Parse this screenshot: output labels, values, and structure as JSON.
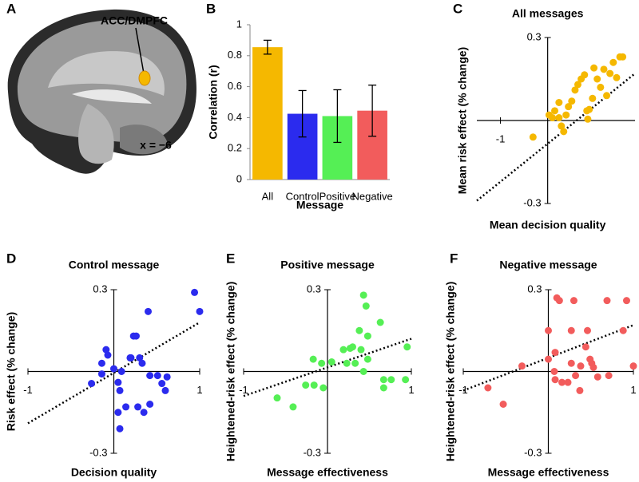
{
  "panel_a": {
    "panel_label": "A",
    "region_label": "ACC/DMPFC",
    "coordinate_label": "x = −6"
  },
  "chart_data": [
    {
      "type": "bar",
      "panel_label": "B",
      "ylabel": "Correlation (r)",
      "xlabel": "Message",
      "categories": [
        "All",
        "Control",
        "Positive",
        "Negative"
      ],
      "values": [
        0.855,
        0.425,
        0.41,
        0.445
      ],
      "errors": [
        0.045,
        0.15,
        0.17,
        0.165
      ],
      "colors": [
        "#f5b800",
        "#2b2bee",
        "#55ef55",
        "#f25c5c"
      ],
      "ylim": [
        0,
        1
      ],
      "yticks": [
        0,
        0.2,
        0.4,
        0.6,
        0.8,
        1
      ]
    },
    {
      "type": "scatter",
      "panel_label": "C",
      "title": "All messages",
      "xlabel": "Mean decision quality",
      "ylabel": "Mean risk effect (% change)",
      "color": "#f5b800",
      "xlim": [
        -1.5,
        1.85
      ],
      "ylim": [
        -0.3,
        0.3
      ],
      "xticks": [
        -1
      ],
      "yticks": [
        -0.3,
        0.3
      ],
      "x": [
        -0.31,
        0.03,
        0.1,
        0.15,
        0.24,
        0.29,
        0.34,
        0.39,
        0.44,
        0.51,
        0.58,
        0.64,
        0.71,
        0.78,
        0.85,
        0.88,
        0.95,
        0.98,
        1.05,
        1.12,
        1.19,
        1.25,
        1.32,
        1.39,
        1.46,
        1.53,
        1.59,
        0.83,
        0.24
      ],
      "y": [
        -0.06,
        0.02,
        0.01,
        0.035,
        0.01,
        -0.02,
        -0.04,
        0.02,
        0.05,
        0.07,
        0.11,
        0.13,
        0.15,
        0.165,
        0.005,
        0.04,
        0.08,
        0.19,
        0.15,
        0.12,
        0.185,
        0.09,
        0.17,
        0.21,
        0.155,
        0.23,
        0.23,
        0.035,
        0.065
      ],
      "trendline": {
        "x": [
          -1.5,
          1.85
        ],
        "y": [
          -0.29,
          0.17
        ]
      }
    },
    {
      "type": "scatter",
      "panel_label": "D",
      "title": "Control message",
      "xlabel": "Decision quality",
      "ylabel": "Risk effect (% change)",
      "color": "#2b2bee",
      "xlim": [
        -1,
        1
      ],
      "ylim": [
        -0.3,
        0.3
      ],
      "xticks": [
        -1,
        1
      ],
      "yticks": [
        -0.3,
        0.3
      ],
      "x": [
        -0.26,
        -0.14,
        -0.14,
        -0.09,
        -0.07,
        0,
        0.05,
        0.07,
        0.09,
        0.05,
        0.07,
        0.14,
        0.19,
        0.2,
        0.23,
        0.26,
        0.28,
        0.3,
        0.33,
        0.35,
        0.4,
        0.42,
        0.42,
        0.51,
        0.56,
        0.62,
        0.6,
        0.94,
        1.0
      ],
      "y": [
        -0.044,
        -0.009,
        0.03,
        0.08,
        0.06,
        0.01,
        -0.04,
        -0.07,
        0,
        -0.15,
        -0.21,
        -0.13,
        0.05,
        0.05,
        0.13,
        0.13,
        -0.13,
        0.05,
        0.03,
        -0.15,
        0.22,
        -0.12,
        -0.015,
        -0.015,
        -0.044,
        -0.02,
        -0.07,
        0.29,
        0.22
      ],
      "trendline": {
        "x": [
          -1,
          1
        ],
        "y": [
          -0.19,
          0.18
        ]
      }
    },
    {
      "type": "scatter",
      "panel_label": "E",
      "title": "Positive message",
      "xlabel": "Message effectiveness",
      "ylabel": "Heightened-risk effect (% change)",
      "color": "#55ef55",
      "xlim": [
        -1,
        1
      ],
      "ylim": [
        -0.3,
        0.3
      ],
      "xticks": [
        -1,
        1
      ],
      "yticks": [
        -0.3,
        0.3
      ],
      "x": [
        -0.6,
        -0.41,
        -0.26,
        -0.16,
        -0.05,
        -0.17,
        -0.07,
        0.05,
        0.19,
        0.23,
        0.27,
        0.3,
        0.33,
        0.38,
        0.4,
        0.43,
        0.46,
        0.43,
        0.48,
        0.48,
        0.63,
        0.67,
        0.67,
        0.76,
        0.93,
        0.95
      ],
      "y": [
        -0.097,
        -0.13,
        -0.05,
        -0.05,
        -0.06,
        0.045,
        0.03,
        0.035,
        0.08,
        0.03,
        0.085,
        0.09,
        0.03,
        0.15,
        0.08,
        0.28,
        0.24,
        0,
        0.045,
        0.13,
        0.18,
        -0.03,
        -0.06,
        -0.03,
        -0.03,
        0.09
      ],
      "trendline": {
        "x": [
          -1,
          1
        ],
        "y": [
          -0.09,
          0.12
        ]
      }
    },
    {
      "type": "scatter",
      "panel_label": "F",
      "title": "Negative message",
      "xlabel": "Message effectiveness",
      "ylabel": "Heightened-risk effect (% change)",
      "color": "#f25c5c",
      "xlim": [
        -1,
        1
      ],
      "ylim": [
        -0.3,
        0.3
      ],
      "xticks": [
        -1,
        1
      ],
      "yticks": [
        -0.3,
        0.3
      ],
      "x": [
        -0.71,
        -0.53,
        -0.31,
        0,
        0,
        0.07,
        0.08,
        0.08,
        0.1,
        0.13,
        0.16,
        0.23,
        0.27,
        0.27,
        0.3,
        0.32,
        0.37,
        0.38,
        0.44,
        0.46,
        0.49,
        0.51,
        0.53,
        0.58,
        0.69,
        0.71,
        0.88,
        0.92,
        1.0
      ],
      "y": [
        -0.06,
        -0.12,
        0.02,
        0.15,
        0.045,
        0,
        -0.03,
        0.07,
        0.27,
        0.26,
        -0.04,
        -0.04,
        0.03,
        0.15,
        0.26,
        -0.015,
        -0.07,
        0.02,
        0.09,
        0.15,
        0.045,
        0.03,
        0.015,
        -0.02,
        0.26,
        -0.015,
        0.15,
        0.26,
        0.02
      ],
      "trendline": {
        "x": [
          -1,
          1
        ],
        "y": [
          -0.07,
          0.17
        ]
      }
    }
  ]
}
